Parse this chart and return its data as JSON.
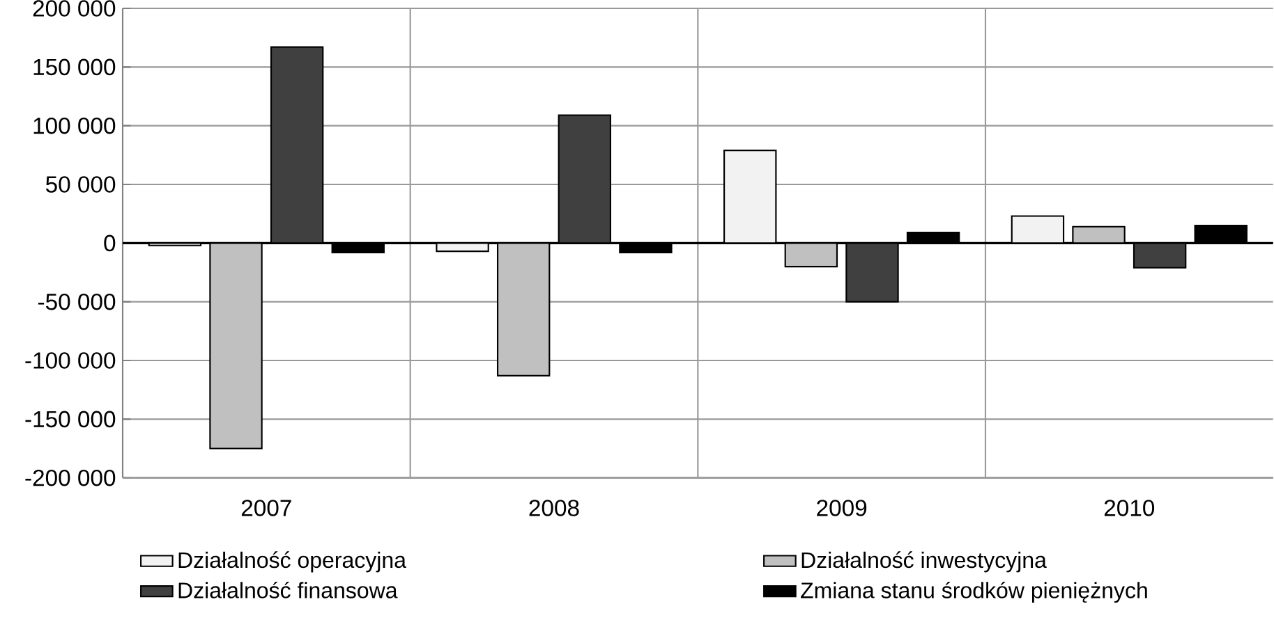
{
  "chart_data": {
    "type": "bar",
    "categories": [
      "2007",
      "2008",
      "2009",
      "2010"
    ],
    "series": [
      {
        "name": "Działalność operacyjna",
        "color": "#f2f2f2",
        "values": [
          -2000,
          -7000,
          79000,
          23000
        ]
      },
      {
        "name": "Działalność inwestycyjna",
        "color": "#c0c0c0",
        "values": [
          -175000,
          -113000,
          -20000,
          14000
        ]
      },
      {
        "name": "Działalność finansowa",
        "color": "#404040",
        "values": [
          167000,
          109000,
          -50000,
          -21000
        ]
      },
      {
        "name": "Zmiana stanu środków pieniężnych",
        "color": "#000000",
        "values": [
          -8000,
          -8000,
          9000,
          15000
        ]
      }
    ],
    "ylim": [
      -200000,
      200000
    ],
    "yticks": [
      {
        "value": -200000,
        "label": "-200 000"
      },
      {
        "value": -150000,
        "label": "-150 000"
      },
      {
        "value": -100000,
        "label": "-100 000"
      },
      {
        "value": -50000,
        "label": "-50 000"
      },
      0,
      {
        "value": 50000,
        "label": "50 000"
      },
      {
        "value": 100000,
        "label": "100 000"
      },
      {
        "value": 150000,
        "label": "150 000"
      },
      {
        "value": 200000,
        "label": "200 000"
      }
    ],
    "grid": true,
    "legend": "bottom"
  }
}
